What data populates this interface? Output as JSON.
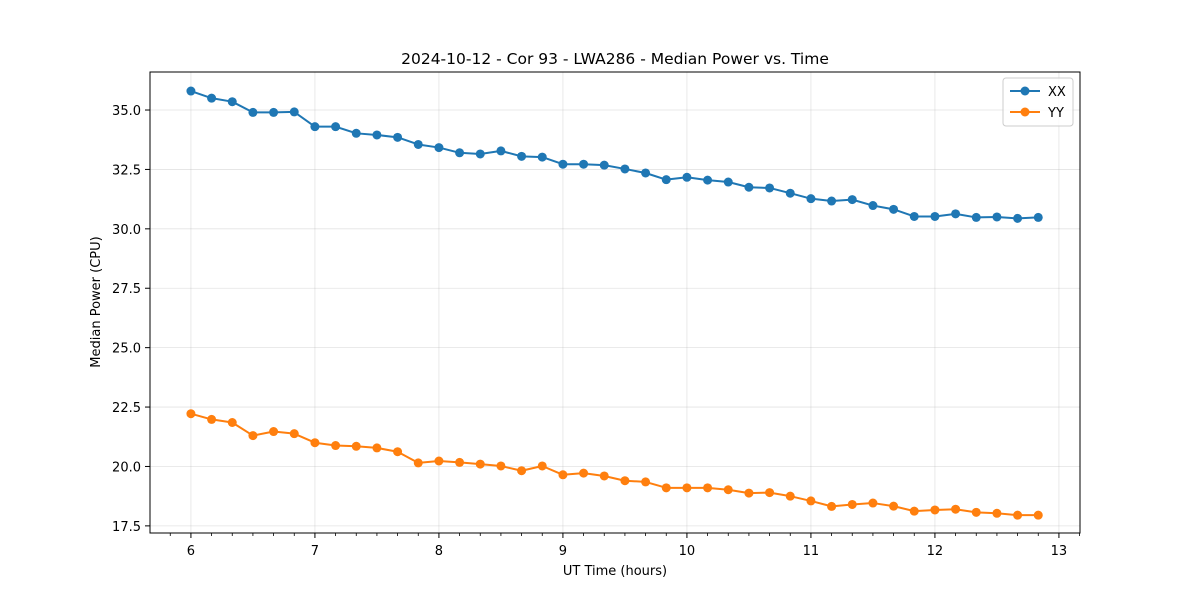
{
  "chart_data": {
    "type": "line",
    "title": "2024-10-12 - Cor 93 - LWA286 - Median Power vs. Time",
    "xlabel": "UT Time (hours)",
    "ylabel": "Median Power (CPU)",
    "xlim": [
      5.67,
      13.17
    ],
    "ylim": [
      17.2,
      36.6
    ],
    "xticks": [
      6,
      7,
      8,
      9,
      10,
      11,
      12,
      13
    ],
    "yticks": [
      17.5,
      20.0,
      22.5,
      25.0,
      27.5,
      30.0,
      32.5,
      35.0
    ],
    "xtick_labels": [
      "6",
      "7",
      "8",
      "9",
      "10",
      "11",
      "12",
      "13"
    ],
    "ytick_labels": [
      "17.5",
      "20.0",
      "22.5",
      "25.0",
      "27.5",
      "30.0",
      "32.5",
      "35.0"
    ],
    "grid": true,
    "legend_position": "top-right",
    "x": [
      6.0,
      6.1667,
      6.3333,
      6.5,
      6.6667,
      6.8333,
      7.0,
      7.1667,
      7.3333,
      7.5,
      7.6667,
      7.8333,
      8.0,
      8.1667,
      8.3333,
      8.5,
      8.6667,
      8.8333,
      9.0,
      9.1667,
      9.3333,
      9.5,
      9.6667,
      9.8333,
      10.0,
      10.1667,
      10.3333,
      10.5,
      10.6667,
      10.8333,
      11.0,
      11.1667,
      11.3333,
      11.5,
      11.6667,
      11.8333,
      12.0,
      12.1667,
      12.3333,
      12.5,
      12.6667,
      12.8333
    ],
    "series": [
      {
        "name": "XX",
        "color": "#1f77b4",
        "values": [
          35.8,
          35.5,
          35.35,
          34.9,
          34.9,
          34.92,
          34.3,
          34.3,
          34.02,
          33.95,
          33.85,
          33.55,
          33.42,
          33.2,
          33.15,
          33.28,
          33.05,
          33.02,
          32.72,
          32.72,
          32.68,
          32.52,
          32.35,
          32.07,
          32.17,
          32.05,
          31.97,
          31.75,
          31.72,
          31.5,
          31.27,
          31.17,
          31.23,
          30.98,
          30.82,
          30.52,
          30.52,
          30.63,
          30.48,
          30.5,
          30.44,
          30.48
        ]
      },
      {
        "name": "YY",
        "color": "#ff7f0e",
        "values": [
          22.22,
          21.98,
          21.85,
          21.3,
          21.47,
          21.38,
          21.0,
          20.88,
          20.85,
          20.78,
          20.62,
          20.15,
          20.23,
          20.17,
          20.1,
          20.02,
          19.82,
          20.02,
          19.65,
          19.72,
          19.6,
          19.4,
          19.35,
          19.1,
          19.1,
          19.1,
          19.02,
          18.88,
          18.9,
          18.75,
          18.55,
          18.32,
          18.4,
          18.46,
          18.33,
          18.12,
          18.17,
          18.2,
          18.07,
          18.03,
          17.95,
          17.95
        ]
      }
    ]
  }
}
